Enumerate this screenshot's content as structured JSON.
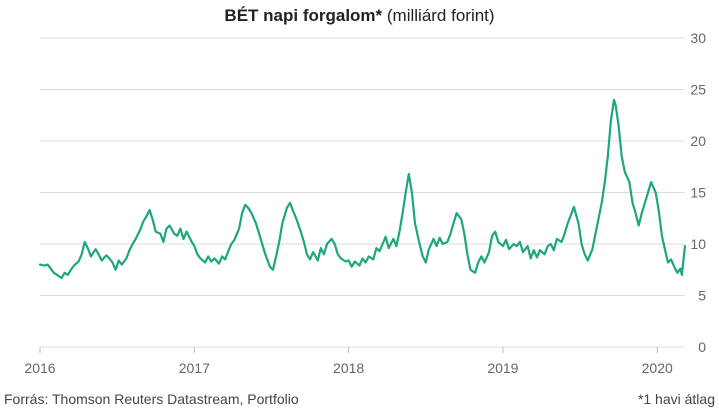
{
  "title": {
    "bold": "BÉT napi forgalom*",
    "normal": "(milliárd forint)"
  },
  "source": "Forrás: Thomson Reuters Datastream, Portfolio",
  "footnote": "*1 havi átlag",
  "colors": {
    "line": "#1ea67e",
    "grid": "#dcdcdc",
    "text": "#666666"
  },
  "chart_data": {
    "type": "line",
    "title": "BÉT napi forgalom* (milliárd forint)",
    "xlabel": "",
    "ylabel": "",
    "ylim": [
      0,
      30
    ],
    "yticks": [
      0,
      5,
      10,
      15,
      20,
      25,
      30
    ],
    "xtick_labels": [
      "2016",
      "2017",
      "2018",
      "2019",
      "2020"
    ],
    "xlim": [
      2016.0,
      2020.18
    ],
    "grid": true,
    "y_axis_side": "right",
    "series": [
      {
        "values": [
          [
            2016.0,
            8.0
          ],
          [
            2016.03,
            7.9
          ],
          [
            2016.05,
            8.0
          ],
          [
            2016.07,
            7.6
          ],
          [
            2016.09,
            7.2
          ],
          [
            2016.11,
            7.0
          ],
          [
            2016.14,
            6.7
          ],
          [
            2016.16,
            7.2
          ],
          [
            2016.18,
            7.0
          ],
          [
            2016.2,
            7.5
          ],
          [
            2016.22,
            7.9
          ],
          [
            2016.25,
            8.3
          ],
          [
            2016.27,
            9.0
          ],
          [
            2016.29,
            10.2
          ],
          [
            2016.31,
            9.6
          ],
          [
            2016.33,
            8.8
          ],
          [
            2016.36,
            9.5
          ],
          [
            2016.38,
            9.0
          ],
          [
            2016.4,
            8.4
          ],
          [
            2016.43,
            8.9
          ],
          [
            2016.45,
            8.6
          ],
          [
            2016.47,
            8.2
          ],
          [
            2016.49,
            7.5
          ],
          [
            2016.51,
            8.4
          ],
          [
            2016.53,
            8.0
          ],
          [
            2016.56,
            8.6
          ],
          [
            2016.58,
            9.4
          ],
          [
            2016.6,
            10.0
          ],
          [
            2016.62,
            10.5
          ],
          [
            2016.65,
            11.4
          ],
          [
            2016.67,
            12.2
          ],
          [
            2016.69,
            12.7
          ],
          [
            2016.71,
            13.3
          ],
          [
            2016.73,
            12.4
          ],
          [
            2016.75,
            11.2
          ],
          [
            2016.78,
            11.0
          ],
          [
            2016.8,
            10.2
          ],
          [
            2016.82,
            11.5
          ],
          [
            2016.84,
            11.8
          ],
          [
            2016.87,
            11.0
          ],
          [
            2016.89,
            10.8
          ],
          [
            2016.91,
            11.5
          ],
          [
            2016.93,
            10.5
          ],
          [
            2016.95,
            11.2
          ],
          [
            2016.98,
            10.3
          ],
          [
            2017.0,
            9.8
          ],
          [
            2017.02,
            9.0
          ],
          [
            2017.04,
            8.6
          ],
          [
            2017.07,
            8.2
          ],
          [
            2017.09,
            8.8
          ],
          [
            2017.11,
            8.3
          ],
          [
            2017.13,
            8.6
          ],
          [
            2017.16,
            8.1
          ],
          [
            2017.18,
            8.8
          ],
          [
            2017.2,
            8.5
          ],
          [
            2017.22,
            9.3
          ],
          [
            2017.24,
            10.0
          ],
          [
            2017.26,
            10.4
          ],
          [
            2017.29,
            11.5
          ],
          [
            2017.31,
            13.0
          ],
          [
            2017.33,
            13.8
          ],
          [
            2017.35,
            13.5
          ],
          [
            2017.37,
            13.0
          ],
          [
            2017.4,
            12.0
          ],
          [
            2017.42,
            11.0
          ],
          [
            2017.44,
            10.0
          ],
          [
            2017.46,
            9.0
          ],
          [
            2017.49,
            7.8
          ],
          [
            2017.51,
            7.5
          ],
          [
            2017.53,
            8.8
          ],
          [
            2017.55,
            10.2
          ],
          [
            2017.57,
            12.0
          ],
          [
            2017.6,
            13.5
          ],
          [
            2017.62,
            14.0
          ],
          [
            2017.64,
            13.2
          ],
          [
            2017.66,
            12.5
          ],
          [
            2017.69,
            11.2
          ],
          [
            2017.71,
            10.2
          ],
          [
            2017.73,
            9.0
          ],
          [
            2017.75,
            8.5
          ],
          [
            2017.77,
            9.2
          ],
          [
            2017.8,
            8.4
          ],
          [
            2017.82,
            9.6
          ],
          [
            2017.84,
            9.0
          ],
          [
            2017.86,
            10.0
          ],
          [
            2017.89,
            10.5
          ],
          [
            2017.91,
            10.0
          ],
          [
            2017.93,
            9.0
          ],
          [
            2017.95,
            8.6
          ],
          [
            2017.98,
            8.3
          ],
          [
            2018.0,
            8.4
          ],
          [
            2018.02,
            7.8
          ],
          [
            2018.04,
            8.3
          ],
          [
            2018.07,
            7.9
          ],
          [
            2018.09,
            8.6
          ],
          [
            2018.11,
            8.2
          ],
          [
            2018.13,
            8.8
          ],
          [
            2018.16,
            8.5
          ],
          [
            2018.18,
            9.6
          ],
          [
            2018.2,
            9.3
          ],
          [
            2018.22,
            10.0
          ],
          [
            2018.24,
            10.7
          ],
          [
            2018.26,
            9.6
          ],
          [
            2018.29,
            10.5
          ],
          [
            2018.31,
            9.8
          ],
          [
            2018.33,
            11.2
          ],
          [
            2018.35,
            13.0
          ],
          [
            2018.37,
            15.0
          ],
          [
            2018.39,
            16.8
          ],
          [
            2018.41,
            15.0
          ],
          [
            2018.43,
            12.0
          ],
          [
            2018.46,
            10.0
          ],
          [
            2018.48,
            8.8
          ],
          [
            2018.5,
            8.2
          ],
          [
            2018.52,
            9.5
          ],
          [
            2018.55,
            10.5
          ],
          [
            2018.57,
            9.8
          ],
          [
            2018.59,
            10.6
          ],
          [
            2018.61,
            10.0
          ],
          [
            2018.64,
            10.2
          ],
          [
            2018.66,
            11.0
          ],
          [
            2018.68,
            12.0
          ],
          [
            2018.7,
            13.0
          ],
          [
            2018.73,
            12.4
          ],
          [
            2018.75,
            11.0
          ],
          [
            2018.77,
            9.0
          ],
          [
            2018.79,
            7.5
          ],
          [
            2018.82,
            7.2
          ],
          [
            2018.84,
            8.2
          ],
          [
            2018.86,
            8.8
          ],
          [
            2018.88,
            8.2
          ],
          [
            2018.91,
            9.2
          ],
          [
            2018.93,
            10.8
          ],
          [
            2018.95,
            11.2
          ],
          [
            2018.97,
            10.2
          ],
          [
            2019.0,
            9.8
          ],
          [
            2019.02,
            10.4
          ],
          [
            2019.04,
            9.5
          ],
          [
            2019.07,
            10.0
          ],
          [
            2019.09,
            9.8
          ],
          [
            2019.11,
            10.2
          ],
          [
            2019.13,
            9.2
          ],
          [
            2019.16,
            9.8
          ],
          [
            2019.18,
            8.6
          ],
          [
            2019.2,
            9.4
          ],
          [
            2019.22,
            8.7
          ],
          [
            2019.24,
            9.4
          ],
          [
            2019.27,
            9.0
          ],
          [
            2019.29,
            9.8
          ],
          [
            2019.31,
            10.0
          ],
          [
            2019.33,
            9.4
          ],
          [
            2019.35,
            10.5
          ],
          [
            2019.38,
            10.2
          ],
          [
            2019.4,
            11.0
          ],
          [
            2019.42,
            12.0
          ],
          [
            2019.44,
            12.8
          ],
          [
            2019.46,
            13.6
          ],
          [
            2019.49,
            12.0
          ],
          [
            2019.51,
            10.0
          ],
          [
            2019.53,
            9.0
          ],
          [
            2019.55,
            8.4
          ],
          [
            2019.58,
            9.5
          ],
          [
            2019.6,
            11.0
          ],
          [
            2019.62,
            12.5
          ],
          [
            2019.64,
            14.0
          ],
          [
            2019.66,
            16.0
          ],
          [
            2019.68,
            18.5
          ],
          [
            2019.7,
            22.0
          ],
          [
            2019.72,
            24.0
          ],
          [
            2019.73,
            23.5
          ],
          [
            2019.75,
            21.5
          ],
          [
            2019.77,
            18.5
          ],
          [
            2019.79,
            17.0
          ],
          [
            2019.82,
            16.0
          ],
          [
            2019.84,
            14.0
          ],
          [
            2019.86,
            13.0
          ],
          [
            2019.88,
            11.8
          ],
          [
            2019.9,
            13.0
          ],
          [
            2019.92,
            14.0
          ],
          [
            2019.94,
            15.0
          ],
          [
            2019.96,
            16.0
          ],
          [
            2019.99,
            15.0
          ],
          [
            2020.01,
            13.2
          ],
          [
            2020.03,
            10.8
          ],
          [
            2020.05,
            9.5
          ],
          [
            2020.07,
            8.2
          ],
          [
            2020.09,
            8.5
          ],
          [
            2020.11,
            7.8
          ],
          [
            2020.13,
            7.2
          ],
          [
            2020.15,
            7.6
          ],
          [
            2020.16,
            7.0
          ],
          [
            2020.17,
            8.5
          ],
          [
            2020.18,
            9.8
          ]
        ]
      }
    ]
  }
}
